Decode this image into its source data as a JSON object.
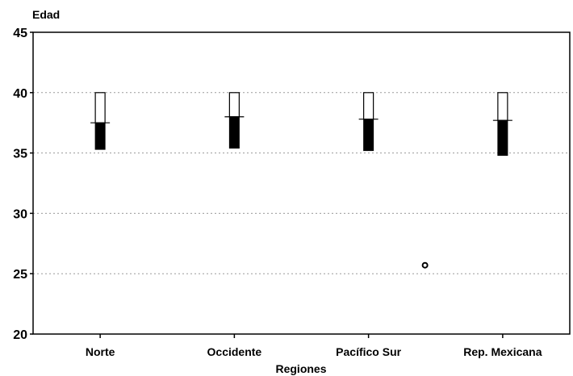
{
  "chart_data": {
    "type": "box",
    "ylabel": "Edad",
    "xlabel": "Regiones",
    "ylim": [
      20,
      45
    ],
    "yticks": [
      20,
      25,
      30,
      35,
      40,
      45
    ],
    "grid": "horizontal-dotted",
    "categories": [
      "Norte",
      "Occidente",
      "Pacífico Sur",
      "Rep. Mexicana"
    ],
    "series": [
      {
        "values": [
          {
            "q1": 35.3,
            "median": 37.5,
            "q3": 40.0
          },
          {
            "q1": 35.4,
            "median": 38.0,
            "q3": 40.0
          },
          {
            "q1": 35.2,
            "median": 37.8,
            "q3": 40.0
          },
          {
            "q1": 34.8,
            "median": 37.7,
            "q3": 40.0
          }
        ]
      }
    ],
    "outliers": [
      {
        "category": "Pacífico Sur",
        "value": 25.7
      }
    ],
    "colors": {
      "axis": "#000000",
      "grid": "#9a9a9a",
      "lower_box": "#000000",
      "upper_box": "#ffffff"
    }
  }
}
